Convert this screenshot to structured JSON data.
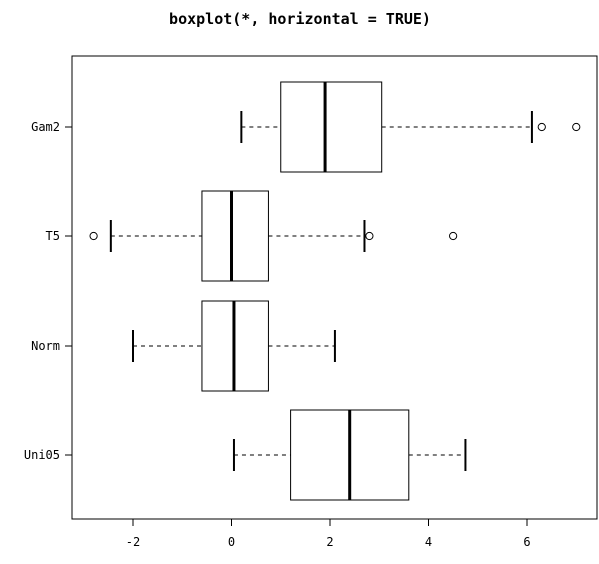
{
  "chart_data": {
    "type": "boxplot",
    "title": "boxplot(*, horizontal = TRUE)",
    "orientation": "horizontal",
    "xlabel": "",
    "ylabel": "",
    "xlim": [
      -3.2,
      7.4
    ],
    "xticks": [
      -2,
      0,
      2,
      4,
      6
    ],
    "xtick_labels": [
      "-2",
      "0",
      "2",
      "4",
      "6"
    ],
    "grid": false,
    "legend": "none",
    "categories": [
      "Uni05",
      "Norm",
      "T5",
      "Gam2"
    ],
    "boxes": [
      {
        "name": "Uni05",
        "whisker_low": 0.05,
        "q1": 1.2,
        "median": 2.4,
        "q3": 3.6,
        "whisker_high": 4.75,
        "outliers": []
      },
      {
        "name": "Norm",
        "whisker_low": -2.0,
        "q1": -0.6,
        "median": 0.05,
        "q3": 0.75,
        "whisker_high": 2.1,
        "outliers": []
      },
      {
        "name": "T5",
        "whisker_low": -2.45,
        "q1": -0.6,
        "median": 0.0,
        "q3": 0.75,
        "whisker_high": 2.7,
        "outliers": [
          -2.8,
          2.8,
          4.5
        ]
      },
      {
        "name": "Gam2",
        "whisker_low": 0.2,
        "q1": 1.0,
        "median": 1.9,
        "q3": 3.05,
        "whisker_high": 6.1,
        "outliers": [
          6.3,
          7.0
        ]
      }
    ]
  }
}
